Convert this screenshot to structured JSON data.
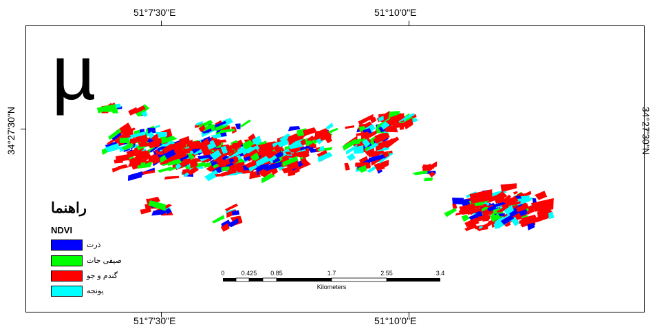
{
  "coordinates": {
    "top_left": "51°7'30\"E",
    "top_right": "51°10'0\"E",
    "bottom_left": "51°7'30\"E",
    "bottom_right": "51°10'0\"E",
    "left": "34°27'30\"N",
    "right": "34°27'30\"N"
  },
  "north_arrow": "µ",
  "legend": {
    "title": "راهنما",
    "subtitle": "NDVI",
    "items": [
      {
        "label": "ذرت",
        "color": "#0000ff"
      },
      {
        "label": "صیفی جات",
        "color": "#00ff00"
      },
      {
        "label": "گندم و جو",
        "color": "#ff0000"
      },
      {
        "label": "یونجه",
        "color": "#00ffff"
      }
    ]
  },
  "scale_bar": {
    "labels": [
      "0",
      "0.425",
      "0.85",
      "1.7",
      "2.55",
      "3.4"
    ],
    "units": "Kilometers"
  },
  "colors": {
    "corn": "#0000ff",
    "vegetables": "#00ff00",
    "wheat_barley": "#ff0000",
    "alfalfa": "#00ffff"
  }
}
